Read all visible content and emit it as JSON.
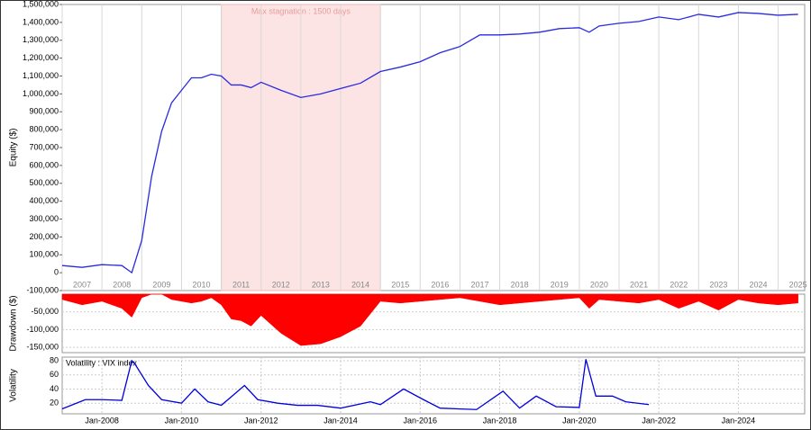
{
  "chart_data": [
    {
      "type": "line",
      "ylabel": "Equity ($)",
      "stagnation": {
        "label": "Max stagnation : 1500 days",
        "start": "2011-01",
        "end": "2015-01",
        "color": "#fde4e4"
      },
      "xlim": [
        "2007-01",
        "2025-09"
      ],
      "year_ticks": [
        2007,
        2008,
        2009,
        2010,
        2011,
        2012,
        2013,
        2014,
        2015,
        2016,
        2017,
        2018,
        2019,
        2020,
        2021,
        2022,
        2023,
        2024,
        2025
      ],
      "x": [
        "2007-01",
        "2007-07",
        "2008-01",
        "2008-07",
        "2008-10",
        "2009-01",
        "2009-04",
        "2009-07",
        "2009-10",
        "2010-01",
        "2010-04",
        "2010-07",
        "2010-10",
        "2011-01",
        "2011-04",
        "2011-07",
        "2011-10",
        "2012-01",
        "2012-07",
        "2013-01",
        "2013-07",
        "2014-01",
        "2014-07",
        "2015-01",
        "2015-07",
        "2016-01",
        "2016-07",
        "2017-01",
        "2017-07",
        "2018-01",
        "2018-07",
        "2019-01",
        "2019-07",
        "2020-01",
        "2020-04",
        "2020-07",
        "2021-01",
        "2021-07",
        "2022-01",
        "2022-07",
        "2023-01",
        "2023-07",
        "2024-01",
        "2024-07",
        "2025-01",
        "2025-07"
      ],
      "series": [
        {
          "name": "Equity",
          "color": "#2a2ae0",
          "values": [
            40000,
            30000,
            45000,
            40000,
            0,
            180000,
            540000,
            790000,
            950000,
            1020000,
            1090000,
            1090000,
            1110000,
            1100000,
            1050000,
            1050000,
            1035000,
            1065000,
            1020000,
            980000,
            1000000,
            1030000,
            1060000,
            1125000,
            1150000,
            1180000,
            1230000,
            1265000,
            1330000,
            1330000,
            1335000,
            1345000,
            1365000,
            1370000,
            1345000,
            1380000,
            1395000,
            1405000,
            1430000,
            1415000,
            1445000,
            1430000,
            1455000,
            1450000,
            1440000,
            1445000
          ]
        }
      ],
      "ylim": [
        -100000,
        1500000
      ],
      "yticks": [
        {
          "value": -100000,
          "label": "-100,000"
        },
        0,
        {
          "value": 100000,
          "label": "100,000"
        },
        {
          "value": 200000,
          "label": "200,000"
        },
        {
          "value": 300000,
          "label": "300,000"
        },
        {
          "value": 400000,
          "label": "400,000"
        },
        {
          "value": 500000,
          "label": "500,000"
        },
        {
          "value": 600000,
          "label": "600,000"
        },
        {
          "value": 700000,
          "label": "700,000"
        },
        {
          "value": 800000,
          "label": "800,000"
        },
        {
          "value": 900000,
          "label": "900,000"
        },
        {
          "value": 1000000,
          "label": "1,000,000"
        },
        {
          "value": 1100000,
          "label": "1,100,000"
        },
        {
          "value": 1200000,
          "label": "1,200,000"
        },
        {
          "value": 1300000,
          "label": "1,300,000"
        },
        {
          "value": 1400000,
          "label": "1,400,000"
        },
        {
          "value": 1500000,
          "label": "1,500,000"
        }
      ],
      "grid": false
    },
    {
      "type": "area",
      "ylabel": "Drawdown ($)",
      "xlim": [
        "2007-01",
        "2025-09"
      ],
      "x": [
        "2007-01",
        "2007-07",
        "2008-01",
        "2008-07",
        "2008-10",
        "2009-01",
        "2009-04",
        "2009-07",
        "2009-10",
        "2010-01",
        "2010-04",
        "2010-07",
        "2010-10",
        "2011-01",
        "2011-04",
        "2011-07",
        "2011-10",
        "2012-01",
        "2012-07",
        "2013-01",
        "2013-07",
        "2014-01",
        "2014-07",
        "2015-01",
        "2015-07",
        "2016-01",
        "2016-07",
        "2017-01",
        "2017-07",
        "2018-01",
        "2018-07",
        "2019-01",
        "2019-07",
        "2020-01",
        "2020-04",
        "2020-07",
        "2021-01",
        "2021-07",
        "2022-01",
        "2022-07",
        "2023-01",
        "2023-07",
        "2024-01",
        "2024-07",
        "2025-01",
        "2025-07"
      ],
      "series": [
        {
          "name": "Drawdown",
          "color": "#ff0000",
          "values": [
            -15000,
            -30000,
            -20000,
            -40000,
            -65000,
            -10000,
            0,
            0,
            -15000,
            -20000,
            -25000,
            -20000,
            -10000,
            -30000,
            -70000,
            -75000,
            -90000,
            -60000,
            -110000,
            -145000,
            -140000,
            -120000,
            -90000,
            -20000,
            -25000,
            -20000,
            -15000,
            -10000,
            -20000,
            -30000,
            -25000,
            -20000,
            -15000,
            -10000,
            -40000,
            -15000,
            -20000,
            -25000,
            -15000,
            -40000,
            -20000,
            -45000,
            -15000,
            -25000,
            -30000,
            -25000
          ]
        }
      ],
      "ylim": [
        -165000,
        0
      ],
      "yticks": [
        {
          "value": -50000,
          "label": "-50,000"
        },
        {
          "value": -100000,
          "label": "-100,000"
        },
        {
          "value": -150000,
          "label": "-150,000"
        }
      ],
      "grid": true
    },
    {
      "type": "line",
      "ylabel": "Volatility",
      "legend": "Volatility : VIX index",
      "xlim": [
        "2007-01",
        "2025-09"
      ],
      "x": [
        "2007-01",
        "2007-08",
        "2008-01",
        "2008-07",
        "2008-10",
        "2008-11",
        "2009-03",
        "2009-07",
        "2010-01",
        "2010-05",
        "2010-09",
        "2011-01",
        "2011-08",
        "2011-12",
        "2012-06",
        "2012-12",
        "2013-06",
        "2014-01",
        "2014-10",
        "2015-01",
        "2015-08",
        "2016-02",
        "2016-07",
        "2017-06",
        "2018-02",
        "2018-07",
        "2018-12",
        "2019-06",
        "2020-01",
        "2020-03",
        "2020-06",
        "2020-11",
        "2021-03",
        "2021-10"
      ],
      "series": [
        {
          "name": "VIX",
          "color": "#0000dd",
          "values": [
            12,
            25,
            25,
            24,
            80,
            75,
            45,
            25,
            20,
            40,
            22,
            17,
            45,
            25,
            20,
            17,
            17,
            13,
            22,
            18,
            40,
            25,
            13,
            11,
            37,
            13,
            30,
            15,
            14,
            82,
            30,
            30,
            22,
            18
          ]
        }
      ],
      "ylim": [
        5,
        85
      ],
      "yticks": [
        20,
        40,
        60,
        80
      ],
      "xticks": [
        {
          "value": "2008-01",
          "label": "Jan-2008"
        },
        {
          "value": "2010-01",
          "label": "Jan-2010"
        },
        {
          "value": "2012-01",
          "label": "Jan-2012"
        },
        {
          "value": "2014-01",
          "label": "Jan-2014"
        },
        {
          "value": "2016-01",
          "label": "Jan-2016"
        },
        {
          "value": "2018-01",
          "label": "Jan-2018"
        },
        {
          "value": "2020-01",
          "label": "Jan-2020"
        },
        {
          "value": "2022-01",
          "label": "Jan-2022"
        },
        {
          "value": "2024-01",
          "label": "Jan-2024"
        }
      ],
      "grid": true
    }
  ]
}
